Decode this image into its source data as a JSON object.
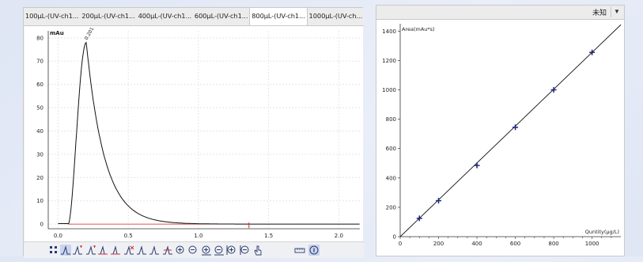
{
  "tabs": [
    "100μL-(UV-ch1...",
    "200μL-(UV-ch1...",
    "400μL-(UV-ch1...",
    "600μL-(UV-ch1...",
    "800μL-(UV-ch1...",
    "1000μL-(UV-ch..."
  ],
  "active_tab_index": 4,
  "chromatogram": {
    "y_unit": "mAu",
    "y_ticks": [
      "80",
      "70",
      "60",
      "50",
      "40",
      "30",
      "20",
      "10",
      "0"
    ],
    "x_ticks": [
      "0.0",
      "0.5",
      "1.0",
      "1.5",
      "2.0"
    ],
    "peak_label": "0.201",
    "ylim": [
      -2,
      83
    ],
    "xlim": [
      -0.07,
      2.15
    ]
  },
  "calibration": {
    "status_label": "未知",
    "dropdown_icon": "dropdown-triangle-icon",
    "ylabel": "Area(mAu*s)",
    "xlabel": "Quntity(μg/L)"
  },
  "chart_data": {
    "type": "scatter",
    "x": [
      100,
      200,
      400,
      600,
      800,
      1000
    ],
    "y": [
      125,
      245,
      485,
      745,
      1000,
      1255
    ],
    "xlabel": "Quntity(μg/L)",
    "ylabel": "Area(mAu*s)",
    "xlim": [
      0,
      1150
    ],
    "ylim": [
      0,
      1450
    ],
    "x_ticks": [
      0,
      200,
      400,
      600,
      800,
      1000
    ],
    "y_ticks": [
      0,
      200,
      400,
      600,
      800,
      1000,
      1200,
      1400
    ],
    "fit_line": {
      "slope": 1.255,
      "intercept": 0
    },
    "marker_color": "#1a237e",
    "line_color": "#111111",
    "grid": false
  },
  "toolbar_icons": [
    "select-region-icon",
    "integrate-peak-icon",
    "add-peak-icon",
    "add-peak-alt-icon",
    "baseline-icon",
    "baseline-alt-icon",
    "delete-peak-icon",
    "split-peak-icon",
    "merge-peak-icon",
    "manual-peak-icon",
    "zoom-in-icon",
    "zoom-out-icon",
    "zoom-in-x-icon",
    "zoom-out-x-icon",
    "zoom-in-y-icon",
    "zoom-out-y-icon",
    "pan-hand-icon",
    "ruler-icon",
    "info-icon"
  ],
  "colors": {
    "trace": "#111111",
    "baseline": "#e02020",
    "grid": "#e4e4e4"
  }
}
